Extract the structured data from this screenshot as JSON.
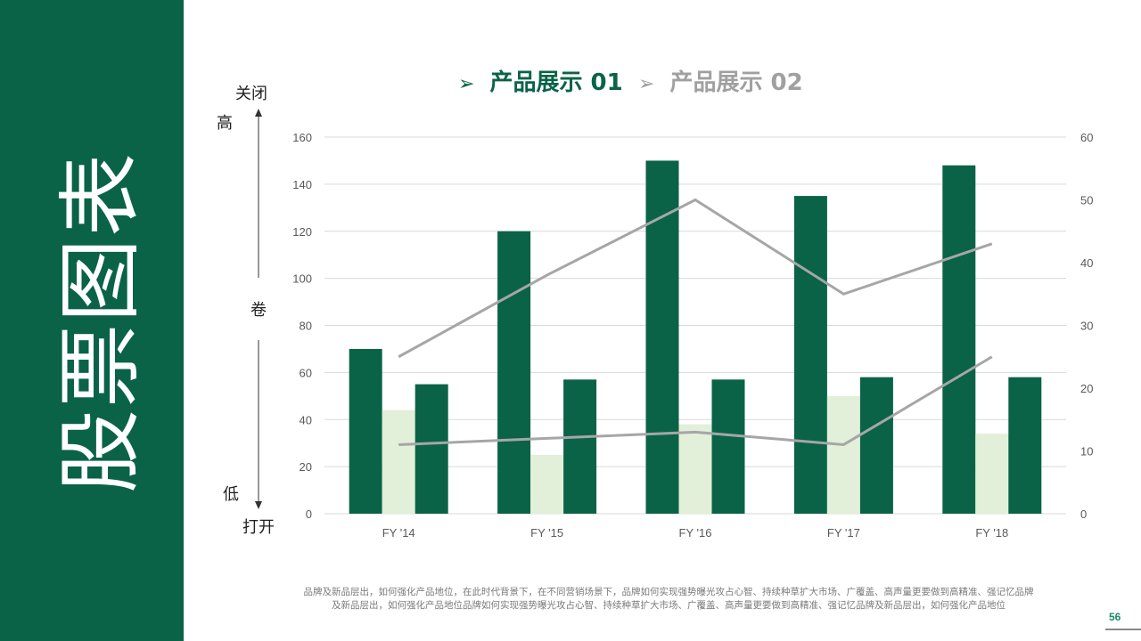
{
  "sidebar": {
    "title": "股票图表",
    "color": "#0a6347"
  },
  "tabs": [
    {
      "label": "产品展示 01",
      "color": "#0a6347",
      "active": true
    },
    {
      "label": "产品展示 02",
      "color": "#a0a0a0",
      "active": false
    }
  ],
  "left_labels": {
    "top1": "关闭",
    "top2": "高",
    "middle": "卷",
    "bottom1": "低",
    "bottom2": "打开"
  },
  "footer": {
    "line1": "品牌及新品层出，如何强化产品地位，在此时代背景下，在不同营销场景下，品牌如何实现强势曝光攻占心智、持续种草扩大市场、广覆盖、高声量更要做到高精准、强记忆品牌",
    "line2": "及新品层出，如何强化产品地位品牌如何实现强势曝光攻占心智、持续种草扩大市场、广覆盖、高声量更要做到高精准、强记忆品牌及新品层出，如何强化产品地位"
  },
  "page_number": "56",
  "chart_data": {
    "type": "bar",
    "categories": [
      "FY '14",
      "FY '15",
      "FY '16",
      "FY '17",
      "FY '18"
    ],
    "ylim": [
      0,
      160
    ],
    "yticks": [
      0,
      20,
      40,
      60,
      80,
      100,
      120,
      140,
      160
    ],
    "y2lim": [
      0,
      60
    ],
    "y2ticks": [
      0,
      10,
      20,
      30,
      40,
      50,
      60
    ],
    "grid": true,
    "bar_series": [
      {
        "values": [
          70,
          120,
          150,
          135,
          148
        ],
        "color": "#0a6347"
      },
      {
        "values": [
          44,
          25,
          38,
          50,
          34
        ],
        "color": "#e2efd9"
      },
      {
        "values": [
          55,
          57,
          57,
          58,
          58
        ],
        "color": "#0a6347"
      }
    ],
    "line_series": [
      {
        "values": [
          25,
          38,
          50,
          35,
          43
        ],
        "axis": "right",
        "color": "#a6a6a6"
      },
      {
        "values": [
          11,
          12,
          13,
          11,
          25
        ],
        "axis": "right",
        "color": "#a6a6a6"
      }
    ]
  }
}
